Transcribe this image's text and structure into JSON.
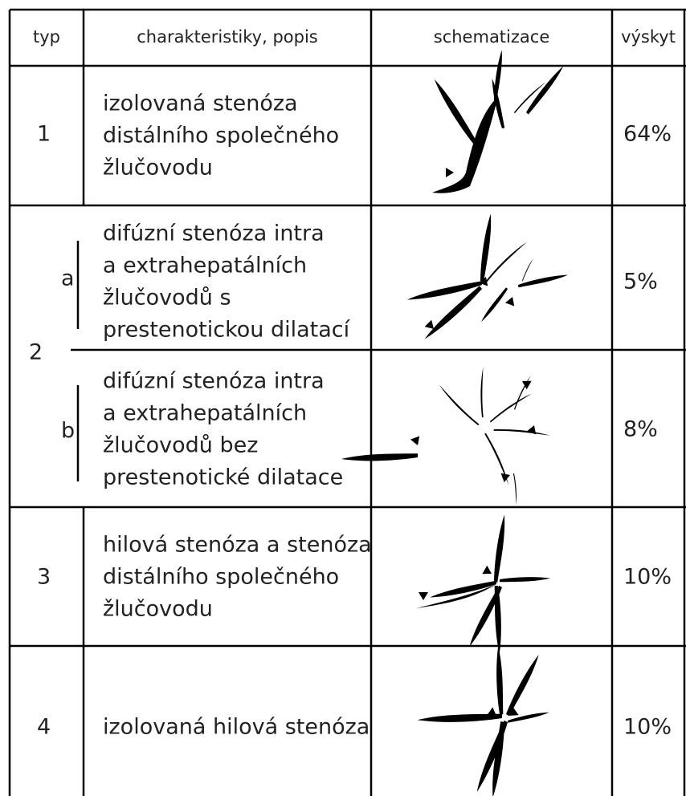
{
  "table": {
    "header": [
      "typ",
      "charakteristiky, popis",
      "schematizace",
      "výskyt"
    ],
    "rows": [
      {
        "type": "1",
        "description": [
          "izolovaná stenóza",
          "distálního společného",
          "žlučovodu"
        ],
        "occurrence": "64%"
      },
      {
        "type": "2",
        "subrows": [
          {
            "subtype": "a",
            "description": [
              "difúzní stenóza intra",
              "a extrahepatálních",
              "žlučovodů s",
              "prestenotickou dilatací"
            ],
            "occurrence": "5%"
          },
          {
            "subtype": "b",
            "description": [
              "difúzní stenóza intra",
              "a extrahepatálních",
              "žlučovodů bez",
              "prestenotické dilatace"
            ],
            "occurrence": "8%"
          }
        ]
      },
      {
        "type": "3",
        "description": [
          "hilová stenóza a stenóza",
          "distálního společného",
          "žlučovodu"
        ],
        "occurrence": "10%"
      },
      {
        "type": "4",
        "description": [
          "izolovaná hilová stenóza"
        ],
        "occurrence": "10%"
      }
    ]
  }
}
